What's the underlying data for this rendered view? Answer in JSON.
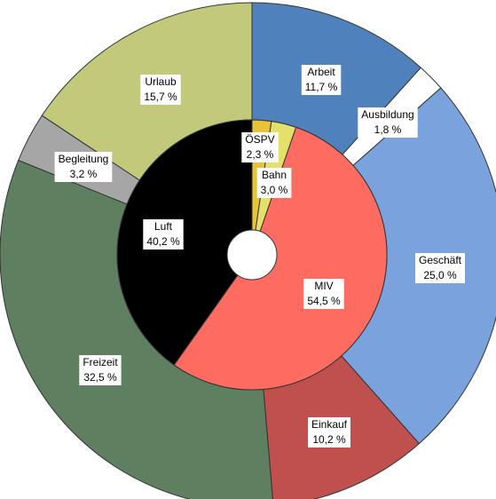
{
  "chart_data": [
    {
      "type": "pie",
      "ring": "outer",
      "unit": "%",
      "slices": [
        {
          "label": "Arbeit",
          "value": 11.7,
          "value_label": "11,7 %",
          "color": "#4f81bd"
        },
        {
          "label": "Ausbildung",
          "value": 1.8,
          "value_label": "1,8 %",
          "color": "#ffffff"
        },
        {
          "label": "Geschäft",
          "value": 25.0,
          "value_label": "25,0 %",
          "color": "#7aa2dc"
        },
        {
          "label": "Einkauf",
          "value": 10.2,
          "value_label": "10,2 %",
          "color": "#c0504d"
        },
        {
          "label": "Freizeit",
          "value": 32.5,
          "value_label": "32,5 %",
          "color": "#5f7f61"
        },
        {
          "label": "Begleitung",
          "value": 3.2,
          "value_label": "3,2 %",
          "color": "#a6a6a6"
        },
        {
          "label": "Urlaub",
          "value": 15.7,
          "value_label": "15,7 %",
          "color": "#c3c97a"
        }
      ]
    },
    {
      "type": "pie",
      "ring": "inner",
      "unit": "%",
      "slices": [
        {
          "label": "ÖSPV",
          "value": 2.3,
          "value_label": "2,3 %",
          "color": "#e8c33a"
        },
        {
          "label": "Bahn",
          "value": 3.0,
          "value_label": "3,0 %",
          "color": "#e4e16a"
        },
        {
          "label": "MIV",
          "value": 54.5,
          "value_label": "54,5 %",
          "color": "#fe6b61"
        },
        {
          "label": "Luft",
          "value": 40.2,
          "value_label": "40,2 %",
          "color": "#000000"
        }
      ]
    }
  ]
}
